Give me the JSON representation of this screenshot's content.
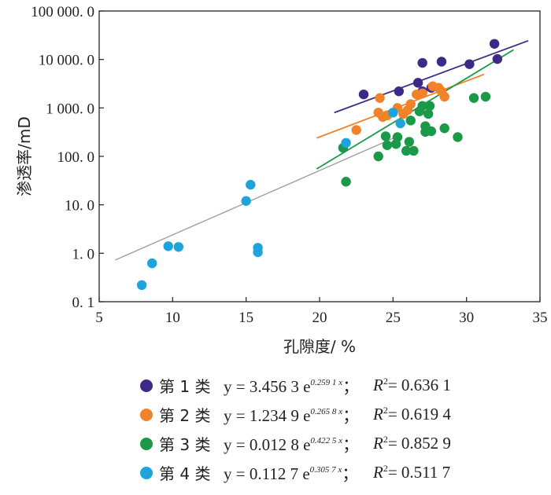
{
  "chart_data": {
    "type": "scatter",
    "xlabel": "孔隙度/ %",
    "ylabel": "渗透率/mD",
    "xlim": [
      5,
      35
    ],
    "ylim": [
      0.1,
      100000
    ],
    "y_scale": "log",
    "x_ticks": [
      "5",
      "10",
      "15",
      "20",
      "25",
      "30",
      "35"
    ],
    "y_ticks": [
      "0. 1",
      "1. 0",
      "10. 0",
      "100. 0",
      "1 000. 0",
      "10 000. 0",
      "100 000. 0"
    ],
    "grid": false,
    "legend_position": "bottom",
    "series": [
      {
        "name": "第 1 类",
        "color": "#3d2a87",
        "equation": "y = 3.456 3 e",
        "exponent": "0.259 1 x",
        "r2": "= 0.636 1",
        "a": 3.4563,
        "b": 0.2591,
        "fit_range": [
          21,
          34.2
        ],
        "points": [
          [
            23,
            1900
          ],
          [
            25.4,
            2200
          ],
          [
            26.7,
            3300
          ],
          [
            27,
            2200
          ],
          [
            27,
            8500
          ],
          [
            27.6,
            2600
          ],
          [
            28.3,
            9000
          ],
          [
            30.2,
            8000
          ],
          [
            31.9,
            21000
          ],
          [
            32.1,
            10200
          ]
        ]
      },
      {
        "name": "第 2 类",
        "color": "#f0822a",
        "equation": "y = 1.234 9 e",
        "exponent": "0.265 8 x",
        "r2": "= 0.619 4",
        "a": 1.2349,
        "b": 0.2658,
        "fit_range": [
          19.8,
          31.2
        ],
        "points": [
          [
            22.5,
            350
          ],
          [
            24,
            800
          ],
          [
            24.1,
            1600
          ],
          [
            24.3,
            650
          ],
          [
            24.6,
            700
          ],
          [
            25.3,
            1000
          ],
          [
            25.7,
            750
          ],
          [
            26,
            900
          ],
          [
            26.2,
            1200
          ],
          [
            26.6,
            1900
          ],
          [
            27,
            2000
          ],
          [
            27.7,
            2800
          ],
          [
            28.1,
            2600
          ],
          [
            28.3,
            2200
          ],
          [
            28.5,
            1700
          ]
        ]
      },
      {
        "name": "第 3 类",
        "color": "#1a9a48",
        "equation": "y = 0.012 8 e",
        "exponent": "0.422 5 x",
        "r2": "= 0.852 9",
        "a": 0.0128,
        "b": 0.4225,
        "fit_range": [
          19.8,
          33.2
        ],
        "points": [
          [
            21.8,
            30
          ],
          [
            21.6,
            150
          ],
          [
            24,
            100
          ],
          [
            24.5,
            260
          ],
          [
            24.6,
            170
          ],
          [
            25.2,
            180
          ],
          [
            25.3,
            250
          ],
          [
            25.9,
            130
          ],
          [
            26.1,
            200
          ],
          [
            26.4,
            130
          ],
          [
            26.2,
            550
          ],
          [
            26.8,
            850
          ],
          [
            27,
            1100
          ],
          [
            27.2,
            420
          ],
          [
            27.2,
            320
          ],
          [
            27.4,
            750
          ],
          [
            27.5,
            1100
          ],
          [
            27.6,
            330
          ],
          [
            28.5,
            380
          ],
          [
            29.4,
            250
          ],
          [
            30.5,
            1600
          ],
          [
            31.3,
            1700
          ]
        ]
      },
      {
        "name": "第 4 类",
        "color": "#1fa3dc",
        "equation": "y = 0.112 7 e",
        "exponent": "0.305 7 x",
        "r2": "= 0.511 7",
        "a": 0.1127,
        "b": 0.3057,
        "fit_range": [
          6.1,
          25.3
        ],
        "points": [
          [
            7.9,
            0.22
          ],
          [
            8.6,
            0.62
          ],
          [
            9.7,
            1.4
          ],
          [
            10.4,
            1.35
          ],
          [
            15,
            12
          ],
          [
            15.3,
            26
          ],
          [
            15.8,
            1.3
          ],
          [
            15.8,
            1.05
          ],
          [
            21.8,
            190
          ],
          [
            25,
            800
          ],
          [
            25.5,
            480
          ]
        ]
      }
    ]
  }
}
